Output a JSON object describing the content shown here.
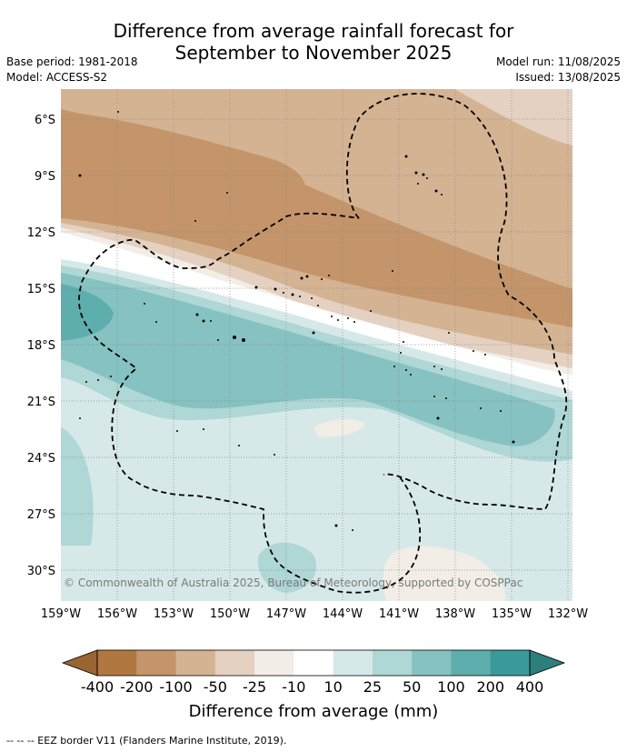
{
  "title_line1": "Difference from average rainfall forecast for",
  "title_line2": "September to November 2025",
  "base_period": "Base period: 1981-2018",
  "model": "Model: ACCESS-S2",
  "model_run": "Model run: 11/08/2025",
  "issued": "Issued: 13/08/2025",
  "copyright": "© Commonwealth of Australia 2025, Bureau of Meteorology, supported by COSPPac",
  "lat_labels": [
    "6°S",
    "9°S",
    "12°S",
    "15°S",
    "18°S",
    "21°S",
    "24°S",
    "27°S",
    "30°S"
  ],
  "lon_labels": [
    "159°W",
    "156°W",
    "153°W",
    "150°W",
    "147°W",
    "144°W",
    "141°W",
    "138°W",
    "135°W",
    "132°W"
  ],
  "colorbar": {
    "ticks": [
      "-400",
      "-200",
      "-100",
      "-50",
      "-25",
      "-10",
      "10",
      "25",
      "50",
      "100",
      "200",
      "400"
    ],
    "colors": [
      "#b07840",
      "#c4956a",
      "#d4b393",
      "#e5d1c1",
      "#f2ede6",
      "#ffffff",
      "#d6e9e8",
      "#aed7d6",
      "#85c2c1",
      "#5eaeae",
      "#3a9a99"
    ],
    "under_color": "#9a6530",
    "over_color": "#2e7e7d",
    "label": "Difference from average (mm)"
  },
  "legend_line": "-- -- -- EEZ border V11 (Flanders Marine Institute, 2019)."
}
